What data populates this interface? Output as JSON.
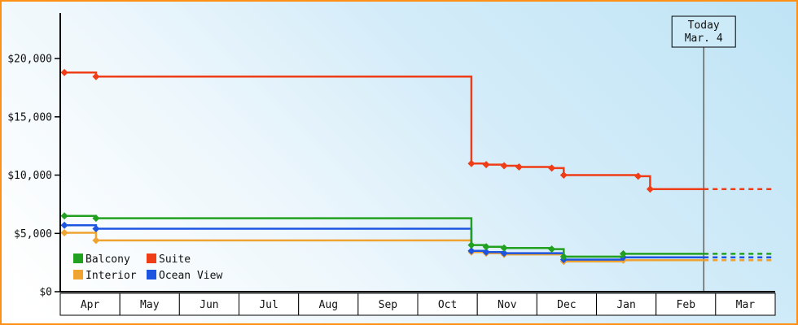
{
  "today_box": {
    "line1": "Today",
    "line2": "Mar. 4"
  },
  "colors": {
    "frame_border": "#ff9015",
    "axis": "#000000",
    "today_line": "#222222",
    "month_cell_fill": "#ffffff",
    "today_box_fill": "#cdeaf8"
  },
  "chart_data": {
    "type": "line",
    "style": "step-after-with-diamond-markers",
    "months": [
      "Apr",
      "May",
      "Jun",
      "Jul",
      "Aug",
      "Sep",
      "Oct",
      "Nov",
      "Dec",
      "Jan",
      "Feb",
      "Mar"
    ],
    "y_axis": {
      "ticks": [
        {
          "value": 0,
          "label": "$0"
        },
        {
          "value": 5000,
          "label": "$5,000"
        },
        {
          "value": 10000,
          "label": "$10,000"
        },
        {
          "value": 15000,
          "label": "$15,000"
        },
        {
          "value": 20000,
          "label": "$20,000"
        }
      ],
      "min": 0,
      "max_drawn": 23900
    },
    "x_range_months": 12,
    "today_x": 10.8,
    "grid": false,
    "legend_position": "bottom-left-inside",
    "series": [
      {
        "name": "Balcony",
        "color": "#22a121",
        "steps": [
          [
            0.07,
            6500
          ],
          [
            0.6,
            6300
          ],
          [
            6.9,
            4000
          ],
          [
            7.15,
            3850
          ],
          [
            7.45,
            3750
          ],
          [
            8.25,
            3650
          ],
          [
            8.45,
            3000
          ],
          [
            9.45,
            3250
          ]
        ],
        "forecast_price": 3250
      },
      {
        "name": "Suite",
        "color": "#ee3d17",
        "steps": [
          [
            0.07,
            18800
          ],
          [
            0.6,
            18450
          ],
          [
            6.9,
            11000
          ],
          [
            7.15,
            10900
          ],
          [
            7.45,
            10800
          ],
          [
            7.7,
            10700
          ],
          [
            8.25,
            10600
          ],
          [
            8.45,
            10000
          ],
          [
            9.7,
            9900
          ],
          [
            9.9,
            8800
          ]
        ],
        "forecast_price": 8800
      },
      {
        "name": "Interior",
        "color": "#efa330",
        "steps": [
          [
            0.07,
            5050
          ],
          [
            0.6,
            4400
          ],
          [
            6.9,
            3400
          ],
          [
            7.15,
            3300
          ],
          [
            7.45,
            3200
          ],
          [
            8.45,
            2600
          ],
          [
            9.45,
            2700
          ]
        ],
        "forecast_price": 2700
      },
      {
        "name": "Ocean View",
        "color": "#1d55e0",
        "steps": [
          [
            0.07,
            5700
          ],
          [
            0.6,
            5400
          ],
          [
            6.9,
            3500
          ],
          [
            7.15,
            3400
          ],
          [
            7.45,
            3300
          ],
          [
            8.45,
            2750
          ],
          [
            9.45,
            2950
          ]
        ],
        "forecast_price": 2950
      }
    ]
  }
}
